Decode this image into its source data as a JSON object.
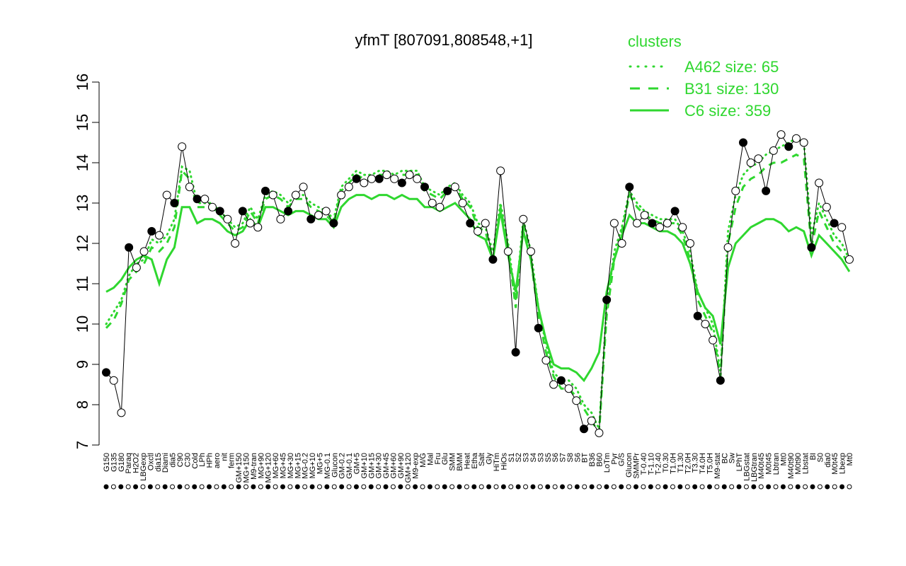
{
  "chart_data": {
    "type": "line",
    "title": "yfmT [807091,808548,+1]",
    "xlabel": "",
    "ylabel": "",
    "ylim": [
      7,
      16
    ],
    "yticks": [
      7,
      8,
      9,
      10,
      11,
      12,
      13,
      14,
      15,
      16
    ],
    "categories": [
      "G150",
      "G180",
      "G135",
      "Paraq",
      "H2O2",
      "LBGexp",
      "Oxctl",
      "dia15",
      "Diami",
      "dia5",
      "C90",
      "C30",
      "Cold",
      "LPh",
      "HPh",
      "aero",
      "nit",
      "ferm",
      "GM+150",
      "MG+150",
      "M9-tran",
      "MG+90",
      "MG+120",
      "MG+60",
      "MG+45",
      "MG+30",
      "MG+15",
      "MG-0.2",
      "MG+10",
      "MG+5",
      "MG-0.1",
      "Glucon",
      "GM-0.2",
      "GM-0.1",
      "GM+5",
      "GM+10",
      "GM+15",
      "GM+30",
      "GM+45",
      "GM+60",
      "GM+90",
      "GM+120",
      "M9-exp",
      "M/G",
      "Mal",
      "Fru",
      "Glu",
      "SMM",
      "BMM",
      "Heat",
      "Etha",
      "Salt",
      "Gly",
      "HiTm",
      "HiOs",
      "S1",
      "S2",
      "S3",
      "S4",
      "S5",
      "S6",
      "S7",
      "S8",
      "BT",
      "B36",
      "B60",
      "LoTm",
      "Pyr",
      "G/S",
      "SMMPr",
      "T-0.40",
      "T-1.10",
      "T-2.40",
      "T0.30",
      "T1.0H",
      "T1.30",
      "T2.0H",
      "T3.30",
      "T4.0H",
      "T5.0H",
      "M9-stat",
      "BC",
      "Sw",
      "LPhT",
      "LBGstat",
      "LBGtran",
      "M40t45",
      "M0t45",
      "Lbtran",
      "Mt0",
      "M40t90",
      "M0t90",
      "Lbstat",
      "BI",
      "S0",
      "dia0",
      "M0t45b",
      "Lbexp",
      "Mt0b"
    ],
    "shown_tick_labels": [
      "G150",
      "G135",
      "G180",
      "Paraq",
      "H2O2",
      "LBGexp",
      "Oxctl",
      "dia15",
      "Diami",
      "dia5",
      "C90",
      "C30",
      "Cold",
      "LPh",
      "HPh",
      "aero",
      "nit",
      "ferm",
      "GM+150",
      "MG+150",
      "M9-tran",
      "MG+90",
      "MG+120",
      "MG+60",
      "MG+45",
      "MG+30",
      "MG+15",
      "MG-0.2",
      "MG+10",
      "MG+5",
      "MG-0.1",
      "Glucon",
      "GM-0.2",
      "GM-0.1",
      "GM+5",
      "GM+10",
      "GM+15",
      "GM+30",
      "GM+45",
      "GM+60",
      "GM+90",
      "GM+120",
      "M9-exp",
      "M/G",
      "Mal",
      "Fru",
      "Glu",
      "SMM",
      "BMM",
      "Heat",
      "Etha",
      "Salt",
      "Gly",
      "HiTm",
      "HiOs",
      "S1",
      "S2",
      "S3",
      "S4",
      "S3",
      "S5",
      "S6",
      "S7",
      "S8",
      "S6",
      "BT",
      "B36",
      "B60",
      "LoTm",
      "Pyr",
      "G/S",
      "Glucon",
      "SMMPr",
      "T-0.40",
      "T-1.10",
      "T-2.40",
      "T0.30",
      "T1.0H",
      "T1.30",
      "T2.0H",
      "T3.30",
      "T4.0H",
      "T5.0H",
      "M9-stat",
      "BC",
      "Sw",
      "LPhT",
      "LBGstat",
      "LBGtran",
      "M40t45",
      "M0t45",
      "Lbtran",
      "Mt0",
      "M40t90",
      "M0t90",
      "Lbstat",
      "BI",
      "S0",
      "dia0",
      "M0t45",
      "Lbexp",
      "Mt0"
    ],
    "series": [
      {
        "name": "A462 size: 65",
        "style": "dotted",
        "color": "#2fd72f",
        "values": [
          10.0,
          10.3,
          10.6,
          11.2,
          11.5,
          11.6,
          12.1,
          12.0,
          12.2,
          12.6,
          13.9,
          13.8,
          13.0,
          13.0,
          13.0,
          12.8,
          12.6,
          12.4,
          12.5,
          12.9,
          12.6,
          13.2,
          13.3,
          13.2,
          13.0,
          13.2,
          13.2,
          13.0,
          12.9,
          12.8,
          12.6,
          13.4,
          13.6,
          13.8,
          13.7,
          13.7,
          13.8,
          13.8,
          13.7,
          13.8,
          13.8,
          13.8,
          13.4,
          13.3,
          13.2,
          13.4,
          13.5,
          13.2,
          13.0,
          12.5,
          12.4,
          11.8,
          13.0,
          12.0,
          10.6,
          12.6,
          11.8,
          10.4,
          9.5,
          8.8,
          8.6,
          8.6,
          8.4,
          8.0,
          7.8,
          7.4,
          10.4,
          11.8,
          12.4,
          13.3,
          13.0,
          12.8,
          12.7,
          12.6,
          12.6,
          12.6,
          12.3,
          11.8,
          10.8,
          10.4,
          10.0,
          8.8,
          12.3,
          13.2,
          13.7,
          13.9,
          14.0,
          14.2,
          14.3,
          14.4,
          14.5,
          14.6,
          14.5,
          12.2,
          13.0,
          12.6,
          12.2,
          12.0,
          11.6
        ]
      },
      {
        "name": "B31 size: 130",
        "style": "dashed",
        "color": "#2fd72f",
        "values": [
          9.9,
          10.1,
          10.5,
          11.1,
          11.3,
          11.5,
          11.9,
          11.8,
          12.0,
          12.4,
          13.8,
          13.6,
          12.9,
          12.9,
          12.9,
          12.7,
          12.5,
          12.3,
          12.4,
          12.8,
          12.5,
          13.1,
          13.2,
          13.1,
          12.9,
          13.1,
          13.1,
          12.9,
          12.8,
          12.7,
          12.5,
          13.3,
          13.5,
          13.7,
          13.6,
          13.6,
          13.7,
          13.7,
          13.6,
          13.7,
          13.7,
          13.7,
          13.3,
          13.2,
          13.1,
          13.3,
          13.4,
          13.1,
          12.9,
          12.4,
          12.3,
          11.6,
          12.9,
          11.9,
          10.4,
          12.5,
          11.6,
          10.2,
          9.3,
          8.7,
          8.4,
          8.4,
          8.2,
          7.9,
          7.6,
          7.3,
          10.2,
          11.6,
          12.3,
          13.2,
          12.9,
          12.7,
          12.6,
          12.5,
          12.5,
          12.5,
          12.2,
          11.6,
          10.6,
          10.2,
          9.8,
          8.7,
          12.0,
          12.9,
          13.4,
          13.6,
          13.7,
          13.9,
          14.0,
          14.0,
          14.1,
          14.2,
          14.1,
          11.9,
          12.8,
          12.4,
          12.0,
          11.8,
          11.4
        ]
      },
      {
        "name": "C6 size: 359",
        "style": "solid",
        "color": "#2fd72f",
        "values": [
          10.8,
          10.9,
          11.1,
          11.4,
          11.6,
          11.7,
          11.6,
          11.0,
          11.6,
          11.9,
          12.9,
          12.9,
          12.5,
          12.6,
          12.6,
          12.5,
          12.3,
          12.2,
          12.3,
          12.6,
          12.4,
          12.9,
          12.9,
          12.8,
          12.7,
          12.8,
          12.8,
          12.7,
          12.6,
          12.6,
          12.4,
          12.9,
          13.1,
          13.2,
          13.2,
          13.1,
          13.2,
          13.2,
          13.1,
          13.2,
          13.1,
          13.1,
          12.9,
          12.9,
          12.8,
          12.9,
          13.0,
          12.8,
          12.6,
          12.2,
          12.1,
          11.6,
          12.8,
          11.7,
          10.8,
          12.3,
          11.6,
          10.4,
          9.6,
          9.0,
          8.9,
          8.9,
          8.8,
          8.6,
          8.9,
          9.3,
          10.8,
          11.6,
          12.2,
          12.7,
          12.5,
          12.5,
          12.4,
          12.3,
          12.3,
          12.2,
          12.0,
          11.5,
          10.8,
          10.4,
          10.2,
          9.5,
          11.4,
          12.0,
          12.2,
          12.4,
          12.5,
          12.6,
          12.6,
          12.5,
          12.3,
          12.4,
          12.3,
          11.7,
          12.2,
          12.0,
          11.8,
          11.6,
          11.3
        ]
      },
      {
        "name": "yfmT",
        "style": "points",
        "color": "#000000",
        "values": [
          8.8,
          8.6,
          7.8,
          11.9,
          11.4,
          11.8,
          12.3,
          12.2,
          13.2,
          13.0,
          14.4,
          13.4,
          13.1,
          13.1,
          12.9,
          12.8,
          12.6,
          12.0,
          12.8,
          12.5,
          12.4,
          13.3,
          13.2,
          12.6,
          12.8,
          13.2,
          13.4,
          12.6,
          12.7,
          12.8,
          12.5,
          13.2,
          13.4,
          13.6,
          13.5,
          13.6,
          13.6,
          13.7,
          13.6,
          13.5,
          13.7,
          13.6,
          13.4,
          13.0,
          12.9,
          13.3,
          13.4,
          13.0,
          12.5,
          12.3,
          12.5,
          11.6,
          13.8,
          11.8,
          9.3,
          12.6,
          11.8,
          9.9,
          9.1,
          8.5,
          8.6,
          8.4,
          8.1,
          7.4,
          7.6,
          7.3,
          10.6,
          12.5,
          12.0,
          13.4,
          12.5,
          12.7,
          12.5,
          12.4,
          12.5,
          12.8,
          12.4,
          12.0,
          10.2,
          10.0,
          9.6,
          8.6,
          11.9,
          13.3,
          14.5,
          14.0,
          14.1,
          13.3,
          14.3,
          14.7,
          14.4,
          14.6,
          14.5,
          11.9,
          13.5,
          12.9,
          12.5,
          12.4,
          11.6
        ]
      }
    ],
    "legend": {
      "title": "clusters",
      "placement": "top-right",
      "entries": [
        {
          "label": "A462 size: 65",
          "style": "dotted"
        },
        {
          "label": "B31 size: 130",
          "style": "dashed"
        },
        {
          "label": "C6 size: 359",
          "style": "solid"
        }
      ]
    },
    "colors": {
      "clusters": "#2fd72f",
      "axis": "#000000",
      "points": "#000000"
    },
    "grid": false
  }
}
